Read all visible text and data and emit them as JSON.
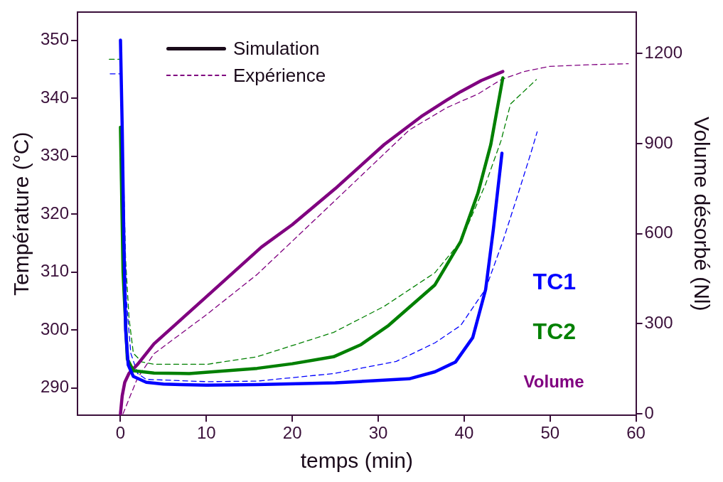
{
  "chart_data": {
    "type": "line",
    "xlabel": "temps (min)",
    "ylabel": "Température (°C)",
    "y2label": "Volume désorbé (Nl)",
    "xlim": [
      -5,
      60
    ],
    "xticks": [
      0,
      10,
      20,
      30,
      40,
      50,
      60
    ],
    "ylim": [
      285.3,
      354.8
    ],
    "yticks": [
      290,
      300,
      310,
      320,
      330,
      340,
      350
    ],
    "y2lim": [
      -5,
      1337
    ],
    "y2ticks": [
      0,
      300,
      600,
      900,
      1200
    ],
    "annotations": [
      "Simulation",
      "Expérience"
    ],
    "series": [
      {
        "name": "TC1",
        "color": "#0000ff",
        "line_style": "solid",
        "x": [
          0,
          0.2,
          0.4,
          0.6,
          0.9,
          1.5,
          3,
          5,
          7,
          10,
          15.9,
          25,
          33.6,
          36.6,
          39,
          41,
          42.5,
          43.4,
          43.9,
          44.4
        ],
        "values": [
          350,
          335,
          315,
          300,
          294,
          292,
          291,
          290.7,
          290.6,
          290.5,
          290.6,
          290.9,
          291.6,
          292.8,
          294.5,
          298.7,
          307,
          317.4,
          324,
          330.5
        ]
      },
      {
        "name": "TC2",
        "color": "#008000",
        "line_style": "solid",
        "x": [
          0,
          0.3,
          0.8,
          1.5,
          3.9,
          8,
          15.9,
          20,
          24.8,
          28,
          31.2,
          36.6,
          39.6,
          41.6,
          43.1,
          44.5
        ],
        "values": [
          335,
          310,
          295,
          293,
          292.6,
          292.5,
          293.4,
          294.2,
          295.4,
          297.5,
          300.8,
          307.8,
          315.3,
          323.6,
          332,
          343.5
        ]
      },
      {
        "name": "Volume",
        "color": "#800080",
        "line_style": "solid",
        "axis": "y2",
        "x": [
          0,
          0.2,
          0.5,
          1,
          2,
          3.9,
          10,
          16.4,
          20,
          25,
          30.7,
          35,
          38,
          39.6,
          42,
          44.5
        ],
        "values": [
          0,
          60,
          105,
          135,
          165,
          233,
          390,
          555,
          630,
          750,
          897,
          990,
          1045,
          1073,
          1110,
          1140
        ]
      },
      {
        "color": "#0000ff",
        "line_style": "dashed",
        "x": [
          -1.2,
          0,
          0.3,
          0.7,
          1.2,
          2,
          3,
          10.1,
          15.9,
          24.8,
          32.1,
          36.6,
          39.6,
          42.5,
          44.5,
          46.3,
          47.8,
          48.5
        ],
        "values": [
          344.2,
          344.2,
          325,
          305,
          296,
          292.5,
          291.5,
          291.1,
          291.2,
          292.5,
          294.6,
          297.8,
          300.8,
          307.1,
          315.3,
          323.6,
          330.7,
          334.2
        ]
      },
      {
        "color": "#008000",
        "line_style": "dashed",
        "x": [
          -1.3,
          0,
          0.3,
          0.6,
          1,
          1.5,
          2.5,
          3.9,
          10.1,
          15.9,
          24.8,
          30.7,
          36.6,
          39.6,
          42.5,
          44.3,
          45.4,
          48.4
        ],
        "values": [
          346.7,
          346.7,
          330,
          312,
          302,
          296,
          294.5,
          294.1,
          294.1,
          295.4,
          299.6,
          304.1,
          309.9,
          315.3,
          325.2,
          332.7,
          339,
          343.2
        ]
      },
      {
        "color": "#800080",
        "line_style": "dashed",
        "axis": "y2",
        "x": [
          0.3,
          1,
          2,
          3.9,
          10,
          15.9,
          20,
          25,
          30,
          33.6,
          38,
          41.6,
          44.3,
          47,
          49.9,
          55,
          59.1
        ],
        "values": [
          0,
          50,
          120,
          200,
          330,
          464,
          575,
          711,
          847,
          945,
          1020,
          1065,
          1113,
          1140,
          1157,
          1163,
          1166
        ]
      }
    ]
  }
}
